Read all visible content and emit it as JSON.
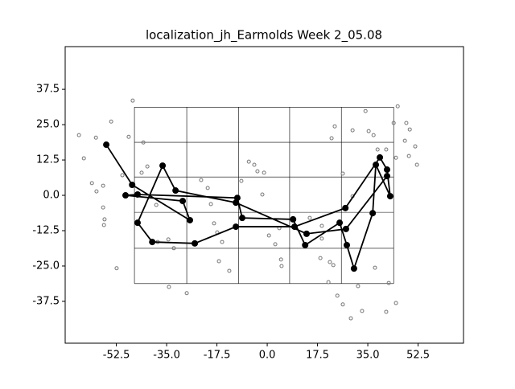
{
  "chart_data": {
    "type": "line",
    "title": "localization_jh_Earmolds Week 2_05.08",
    "xlim": [
      -70.3,
      68.3
    ],
    "ylim": [
      -52.3,
      52.6
    ],
    "xticks": [
      -52.5,
      -35.0,
      -17.5,
      0.0,
      17.5,
      35.0,
      52.5
    ],
    "yticks": [
      -37.5,
      -25.0,
      -12.5,
      0.0,
      12.5,
      25.0,
      37.5
    ],
    "cell_x": [
      -46.2,
      -28.0,
      -10.0,
      7.8,
      25.8,
      44.0
    ],
    "cell_y": [
      31.2,
      18.75,
      6.5,
      -6.0,
      -18.75,
      -31.2
    ],
    "series": [
      {
        "color": "#000000",
        "x": [
          -56.0,
          -47.0,
          -26.9,
          -29.4,
          -49.3,
          -45.1,
          -10.4,
          -8.7,
          9.0,
          13.2,
          25.2,
          27.7,
          30.2,
          36.7,
          37.8,
          42.8,
          41.7,
          39.2,
          27.2,
          9.5,
          -10.9,
          -25.2,
          -40.0,
          -45.1,
          -36.4,
          -31.9,
          -10.9,
          13.7,
          27.4,
          41.7
        ],
        "values": [
          17.9,
          3.7,
          -8.8,
          -2.0,
          0.0,
          0.3,
          -0.9,
          -8.0,
          -8.5,
          -17.6,
          -9.7,
          -17.6,
          -25.9,
          -6.3,
          10.8,
          -0.3,
          9.1,
          13.4,
          -4.5,
          -11.1,
          -11.1,
          -17.0,
          -16.5,
          -9.7,
          10.5,
          1.7,
          -2.6,
          -13.6,
          -11.9,
          6.8
        ]
      }
    ],
    "scatter": {
      "color": "#777777",
      "x": [
        -65.5,
        -63.8,
        -59.6,
        -54.3,
        -61.0,
        -59.4,
        -57.1,
        -57.1,
        -56.6,
        -56.8,
        -52.4,
        -50.4,
        -48.2,
        -46.8,
        -43.7,
        -43.1,
        -41.7,
        -38.6,
        -38.1,
        -34.4,
        -34.2,
        -32.5,
        -28.0,
        -23.0,
        -20.7,
        -19.6,
        -18.5,
        -17.4,
        -15.7,
        -16.8,
        -13.2,
        -9.0,
        -6.4,
        -4.5,
        -3.4,
        -1.1,
        -1.7,
        2.8,
        0.6,
        4.2,
        5.0,
        4.8,
        14.8,
        19.0,
        19.0,
        18.5,
        21.8,
        23.0,
        21.3,
        22.4,
        23.5,
        24.4,
        26.3,
        29.1,
        26.3,
        29.7,
        29.7,
        35.3,
        34.2,
        37.0,
        37.5,
        31.6,
        33.0,
        41.4,
        44.8,
        45.4,
        44.0,
        48.4,
        49.6,
        47.9,
        51.5,
        49.3,
        52.1,
        44.8,
        38.4,
        41.4,
        42.3
      ],
      "values": [
        21.3,
        13.1,
        20.4,
        26.1,
        4.3,
        1.4,
        3.4,
        -4.3,
        -8.5,
        -10.5,
        -25.8,
        7.1,
        20.7,
        33.5,
        8.0,
        18.7,
        10.2,
        -3.4,
        -16.5,
        -15.6,
        -32.4,
        -18.7,
        -34.6,
        5.4,
        2.6,
        -3.1,
        -9.9,
        -13.1,
        -16.5,
        -23.3,
        -26.7,
        5.1,
        11.9,
        10.8,
        8.5,
        8.0,
        0.3,
        -17.3,
        -14.2,
        -11.6,
        -25.0,
        -22.7,
        -8.0,
        -10.8,
        -15.3,
        -22.2,
        -23.6,
        -24.7,
        -30.7,
        20.2,
        24.4,
        -35.5,
        -38.6,
        -43.5,
        7.7,
        -0.3,
        23.0,
        22.7,
        29.8,
        21.3,
        -25.6,
        -32.1,
        -40.9,
        -41.2,
        -38.1,
        31.5,
        25.6,
        25.6,
        23.3,
        19.3,
        17.3,
        13.9,
        10.8,
        13.3,
        16.2,
        16.2,
        -31.0
      ]
    }
  }
}
